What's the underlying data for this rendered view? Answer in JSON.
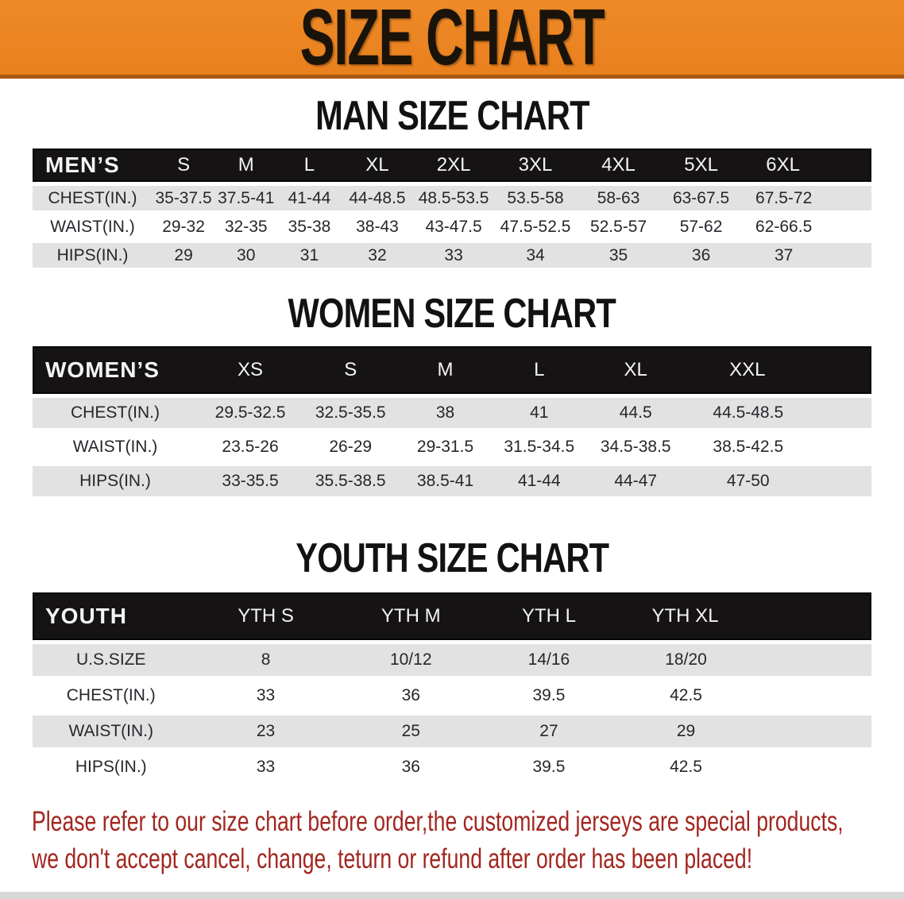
{
  "banner": {
    "title": "SIZE CHART"
  },
  "sections": [
    {
      "id": "men",
      "title": "MAN SIZE CHART",
      "table": {
        "header": [
          "MEN’S",
          "S",
          "M",
          "L",
          "XL",
          "2XL",
          "3XL",
          "4XL",
          "5XL",
          "6XL"
        ],
        "rows": [
          [
            "CHEST(IN.)",
            "35-37.5",
            "37.5-41",
            "41-44",
            "44-48.5",
            "48.5-53.5",
            "53.5-58",
            "58-63",
            "63-67.5",
            "67.5-72"
          ],
          [
            "WAIST(IN.)",
            "29-32",
            "32-35",
            "35-38",
            "38-43",
            "43-47.5",
            "47.5-52.5",
            "52.5-57",
            "57-62",
            "62-66.5"
          ],
          [
            "HIPS(IN.)",
            "29",
            "30",
            "31",
            "32",
            "33",
            "34",
            "35",
            "36",
            "37"
          ]
        ]
      }
    },
    {
      "id": "women",
      "title": "WOMEN SIZE CHART",
      "table": {
        "header": [
          "WOMEN’S",
          "XS",
          "S",
          "M",
          "L",
          "XL",
          "XXL"
        ],
        "rows": [
          [
            "CHEST(IN.)",
            "29.5-32.5",
            "32.5-35.5",
            "38",
            "41",
            "44.5",
            "44.5-48.5"
          ],
          [
            "WAIST(IN.)",
            "23.5-26",
            "26-29",
            "29-31.5",
            "31.5-34.5",
            "34.5-38.5",
            "38.5-42.5"
          ],
          [
            "HIPS(IN.)",
            "33-35.5",
            "35.5-38.5",
            "38.5-41",
            "41-44",
            "44-47",
            "47-50"
          ]
        ]
      }
    },
    {
      "id": "youth",
      "title": "YOUTH SIZE CHART",
      "table": {
        "header": [
          "YOUTH",
          "YTH S",
          "YTH M",
          "YTH L",
          "YTH XL"
        ],
        "rows": [
          [
            "U.S.SIZE",
            "8",
            "10/12",
            "14/16",
            "18/20"
          ],
          [
            "CHEST(IN.)",
            "33",
            "36",
            "39.5",
            "42.5"
          ],
          [
            "WAIST(IN.)",
            "23",
            "25",
            "27",
            "29"
          ],
          [
            "HIPS(IN.)",
            "33",
            "36",
            "39.5",
            "42.5"
          ]
        ]
      }
    }
  ],
  "disclaimer": {
    "line1": "Please refer to our size chart before order,the customized jerseys are special products,",
    "line2": "we don't accept cancel, change, teturn or refund after order has been placed!"
  },
  "colors": {
    "banner_bg": "#E8801D",
    "banner_border": "#A85A14",
    "banner_text": "#1A130A",
    "table_header_bg": "#161314",
    "table_header_text": "#F4F4F2",
    "row_stripe": "#E3E2E2",
    "cell_text": "#26262C",
    "disclaimer_red": "#A2261F",
    "bottom_strip": "#D8D7D7"
  }
}
